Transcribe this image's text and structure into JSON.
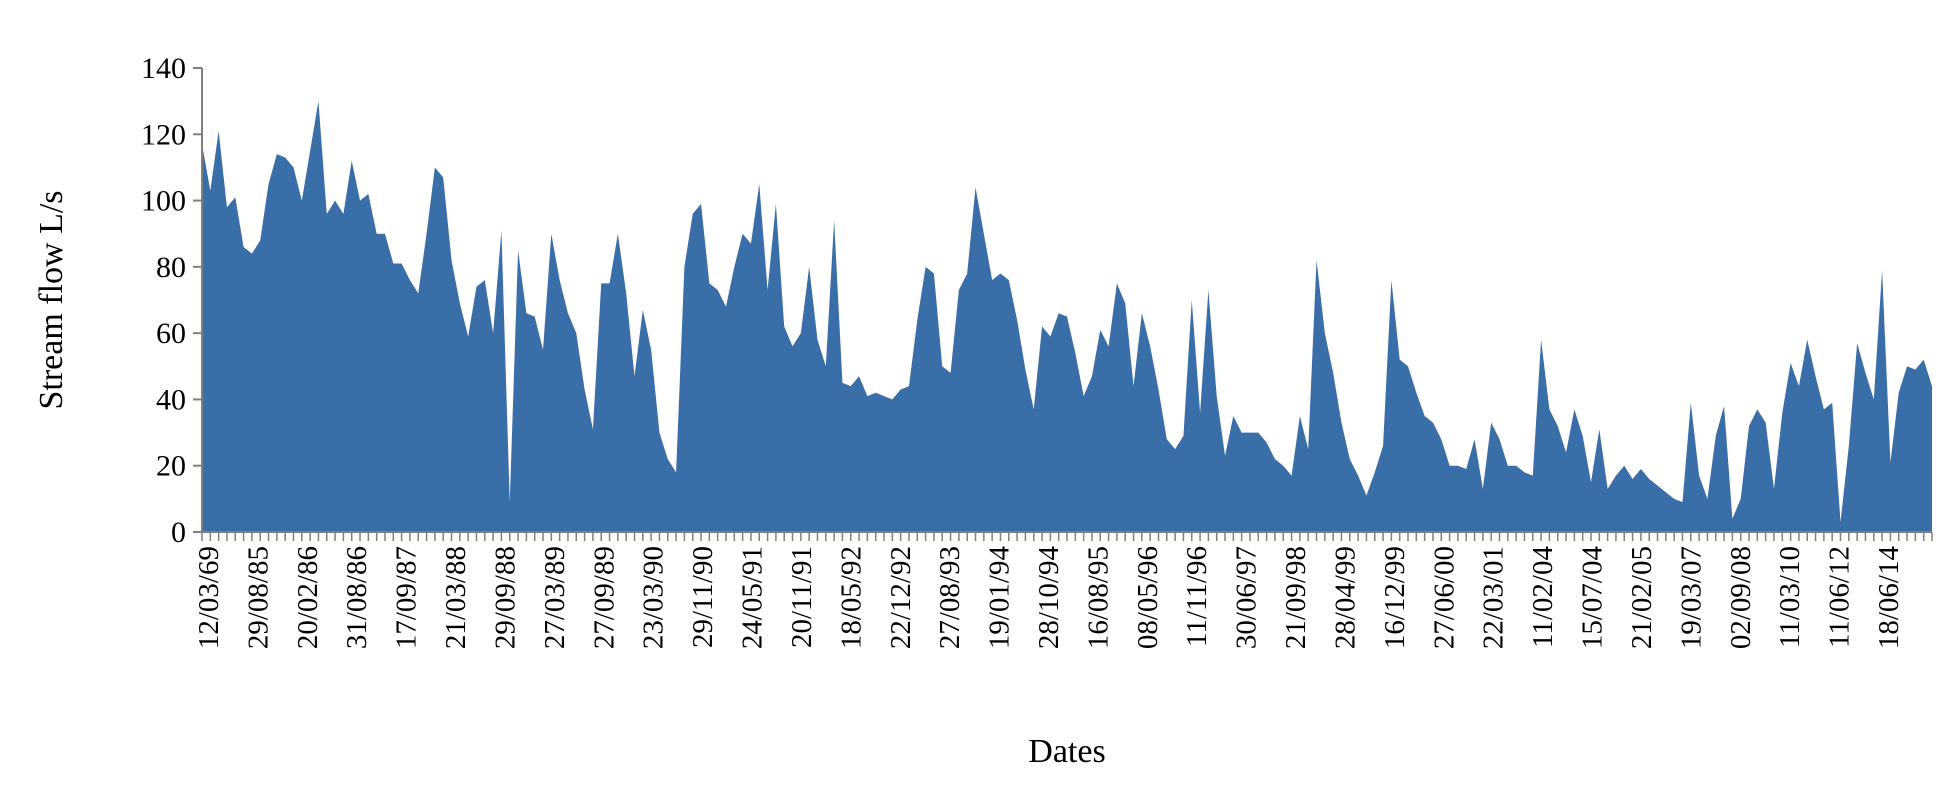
{
  "chart_data": {
    "type": "area",
    "title": "",
    "xlabel": "Dates",
    "ylabel": "Stream flow L/s",
    "ylim": [
      0,
      140
    ],
    "y_ticks": [
      0,
      20,
      40,
      60,
      80,
      100,
      120,
      140
    ],
    "grid": false,
    "legend": "none",
    "fill_color": "#3A6EA8",
    "x_tick_labels": [
      "12/03/69",
      "29/08/85",
      "20/02/86",
      "31/08/86",
      "17/09/87",
      "21/03/88",
      "29/09/88",
      "27/03/89",
      "27/09/89",
      "23/03/90",
      "29/11/90",
      "24/05/91",
      "20/11/91",
      "18/05/92",
      "22/12/92",
      "27/08/93",
      "19/01/94",
      "28/10/94",
      "16/08/95",
      "08/05/96",
      "11/11/96",
      "30/06/97",
      "21/09/98",
      "28/04/99",
      "16/12/99",
      "27/06/00",
      "22/03/01",
      "11/02/04",
      "15/07/04",
      "21/02/05",
      "19/03/07",
      "02/09/08",
      "11/03/10",
      "11/06/12",
      "18/06/14"
    ],
    "series": [
      {
        "values": [
          117,
          103,
          121,
          98,
          101,
          86,
          84,
          88,
          105,
          114,
          113,
          110,
          100,
          115,
          130,
          96,
          100,
          96,
          112,
          100,
          102,
          90,
          90,
          81,
          81,
          76,
          72,
          90,
          110,
          107,
          82,
          69,
          59,
          74,
          76,
          60,
          91,
          9,
          85,
          66,
          65,
          55,
          90,
          76,
          66,
          60,
          43,
          31,
          75,
          75,
          90,
          72,
          47,
          67,
          55,
          30,
          22,
          18,
          80,
          96,
          99,
          75,
          73,
          68,
          80,
          90,
          87,
          105,
          73,
          99,
          62,
          56,
          60,
          80,
          58,
          50,
          94,
          45,
          44,
          47,
          41,
          42,
          41,
          40,
          43,
          44,
          64,
          80,
          78,
          50,
          48,
          73,
          78,
          104,
          90,
          76,
          78,
          76,
          64,
          49,
          37,
          62,
          59,
          66,
          65,
          54,
          41,
          47,
          61,
          56,
          75,
          69,
          44,
          66,
          56,
          43,
          28,
          25,
          29,
          70,
          36,
          73,
          41,
          23,
          35,
          30,
          30,
          30,
          27,
          22,
          20,
          17,
          35,
          25,
          82,
          60,
          48,
          33,
          22,
          17,
          11,
          18,
          26,
          76,
          52,
          50,
          42,
          35,
          33,
          28,
          20,
          20,
          19,
          28,
          13,
          33,
          28,
          20,
          20,
          18,
          17,
          58,
          37,
          32,
          24,
          37,
          29,
          15,
          31,
          13,
          17,
          20,
          16,
          19,
          16,
          14,
          12,
          10,
          9,
          39,
          17,
          10,
          29,
          38,
          4,
          10,
          32,
          37,
          33,
          13,
          36,
          51,
          44,
          58,
          47,
          37,
          39,
          3,
          26,
          57,
          48,
          40,
          79,
          21,
          42,
          50,
          49,
          52,
          44
        ]
      }
    ]
  }
}
